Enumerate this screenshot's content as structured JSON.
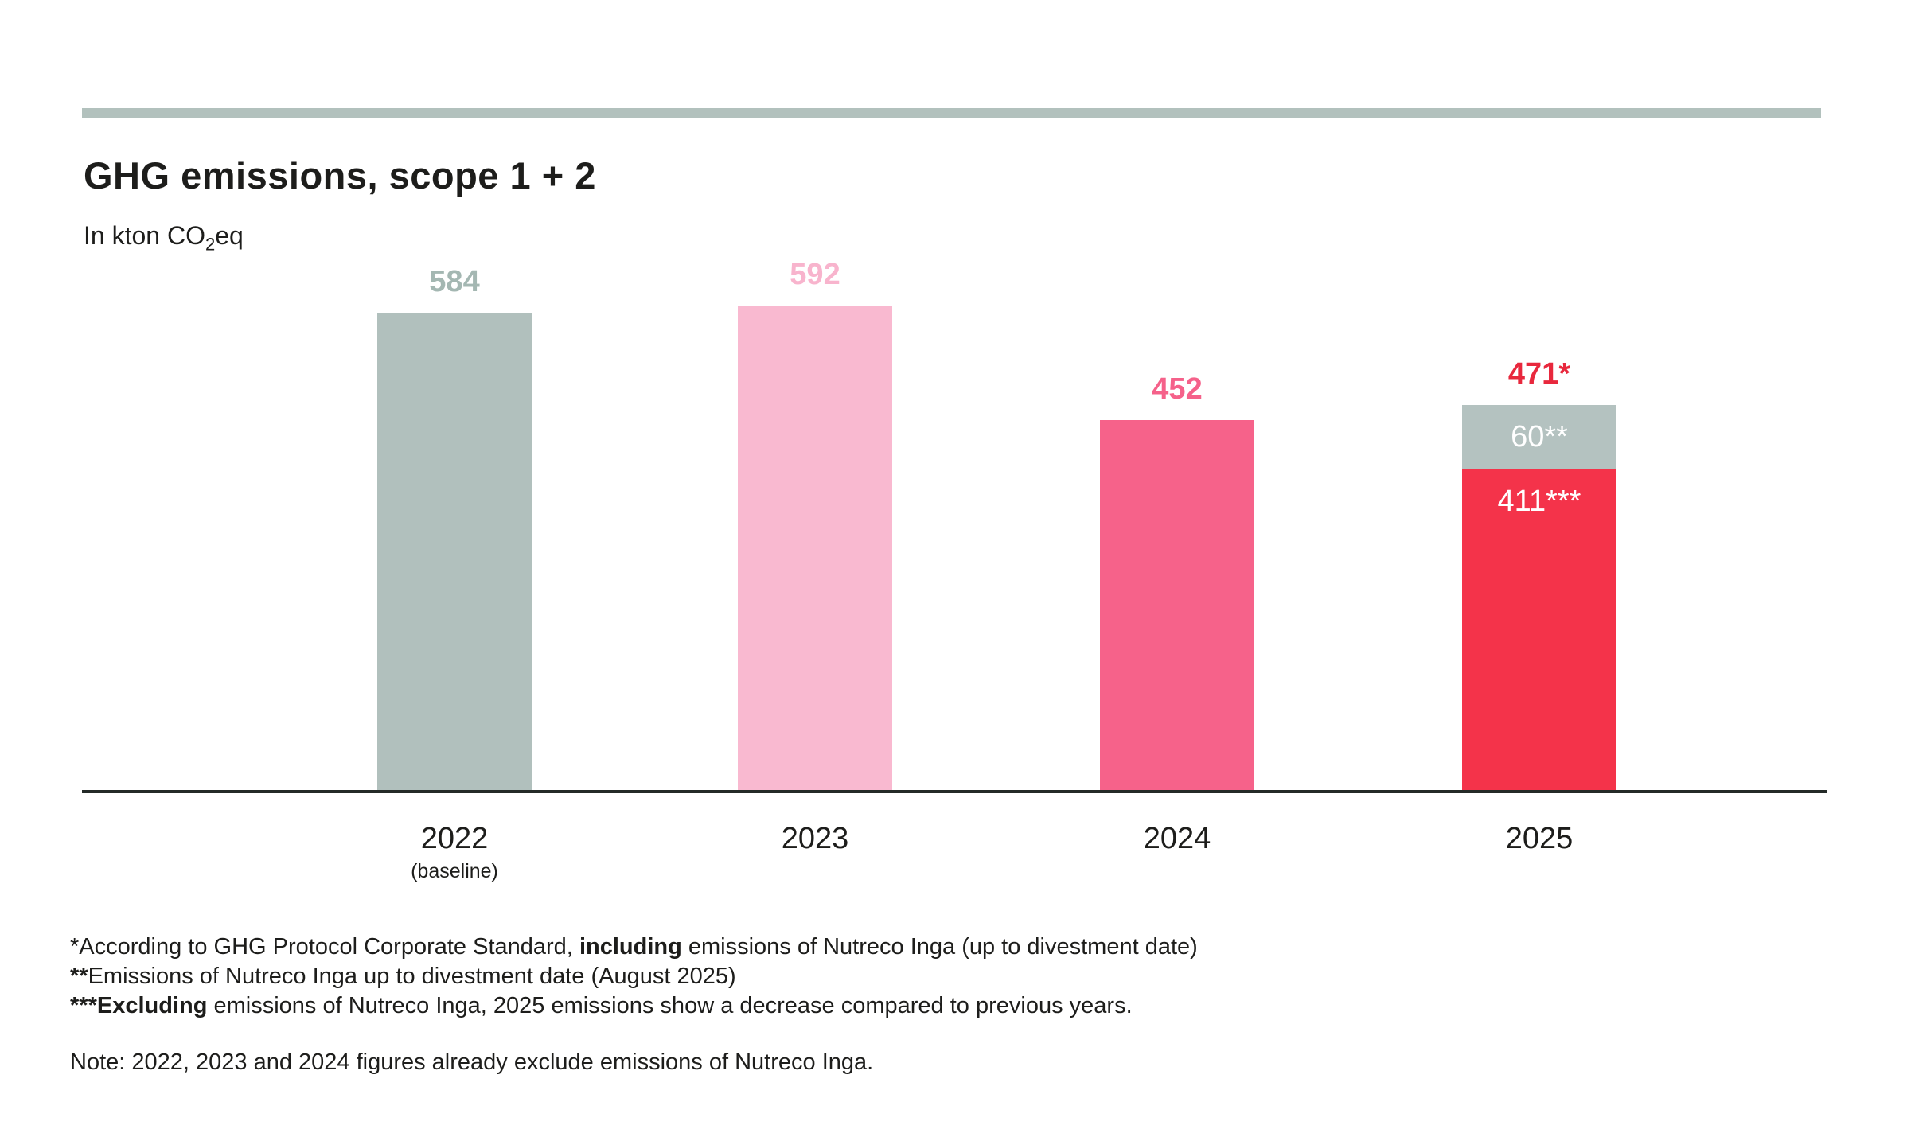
{
  "header": {
    "title": "GHG emissions, scope 1 + 2",
    "subtitle_prefix": "In kton CO",
    "subtitle_sub": "2",
    "subtitle_suffix": "eq"
  },
  "colors": {
    "accent_bar": "#b2c1bd",
    "axis": "#242a28",
    "text": "#1d1d1b",
    "gray_2022": "#b1c0bd",
    "gray_2022_label": "#a4b7b2",
    "pink_2023": "#f9b9d0",
    "pink_2023_label": "#f8b4cd",
    "pink_2024": "#f6628a",
    "pink_2024_label": "#f5618a",
    "red_2025": "#f4334a",
    "red_2025_label": "#e8283d",
    "gray_2025_segment": "#b4c2c0",
    "segment_text": "#ffffff"
  },
  "chart_data": {
    "type": "bar",
    "title": "GHG emissions, scope 1 + 2",
    "ylabel": "In kton CO2eq",
    "xlabel": "",
    "ylim": [
      0,
      650
    ],
    "grid": false,
    "legend_position": "none",
    "categories": [
      "2022",
      "2023",
      "2024",
      "2025"
    ],
    "values": [
      584,
      592,
      452,
      471
    ],
    "bars": [
      {
        "category": "2022",
        "sublabel": "(baseline)",
        "total_label": "584",
        "label_color": "#a4b7b2",
        "segments": [
          {
            "value": 584,
            "color": "#b1c0bd",
            "label": ""
          }
        ]
      },
      {
        "category": "2023",
        "sublabel": "",
        "total_label": "592",
        "label_color": "#f8b4cd",
        "segments": [
          {
            "value": 592,
            "color": "#f9b9d0",
            "label": ""
          }
        ]
      },
      {
        "category": "2024",
        "sublabel": "",
        "total_label": "452",
        "label_color": "#f5618a",
        "segments": [
          {
            "value": 452,
            "color": "#f6628a",
            "label": ""
          }
        ]
      },
      {
        "category": "2025",
        "sublabel": "",
        "total_label": "471*",
        "label_color": "#e8283d",
        "segments": [
          {
            "value": 60,
            "color": "#b4c2c0",
            "label": "60**",
            "label_color": "#ffffff"
          },
          {
            "value": 411,
            "color": "#f4334a",
            "label": "411***",
            "label_color": "#ffffff"
          }
        ]
      }
    ]
  },
  "footnotes": [
    [
      {
        "t": "*According to GHG Protocol Corporate Standard, ",
        "b": false
      },
      {
        "t": "including",
        "b": true
      },
      {
        "t": " emissions of Nutreco Inga (up to divestment date)",
        "b": false
      }
    ],
    [
      {
        "t": "**",
        "b": true
      },
      {
        "t": "Emissions of Nutreco Inga up to divestment date (August 2025)",
        "b": false
      }
    ],
    [
      {
        "t": "***Excluding",
        "b": true
      },
      {
        "t": " emissions of Nutreco Inga, 2025 emissions show a decrease compared to previous years.",
        "b": false
      }
    ]
  ],
  "note": "Note: 2022, 2023 and 2024 figures already exclude emissions of Nutreco Inga."
}
